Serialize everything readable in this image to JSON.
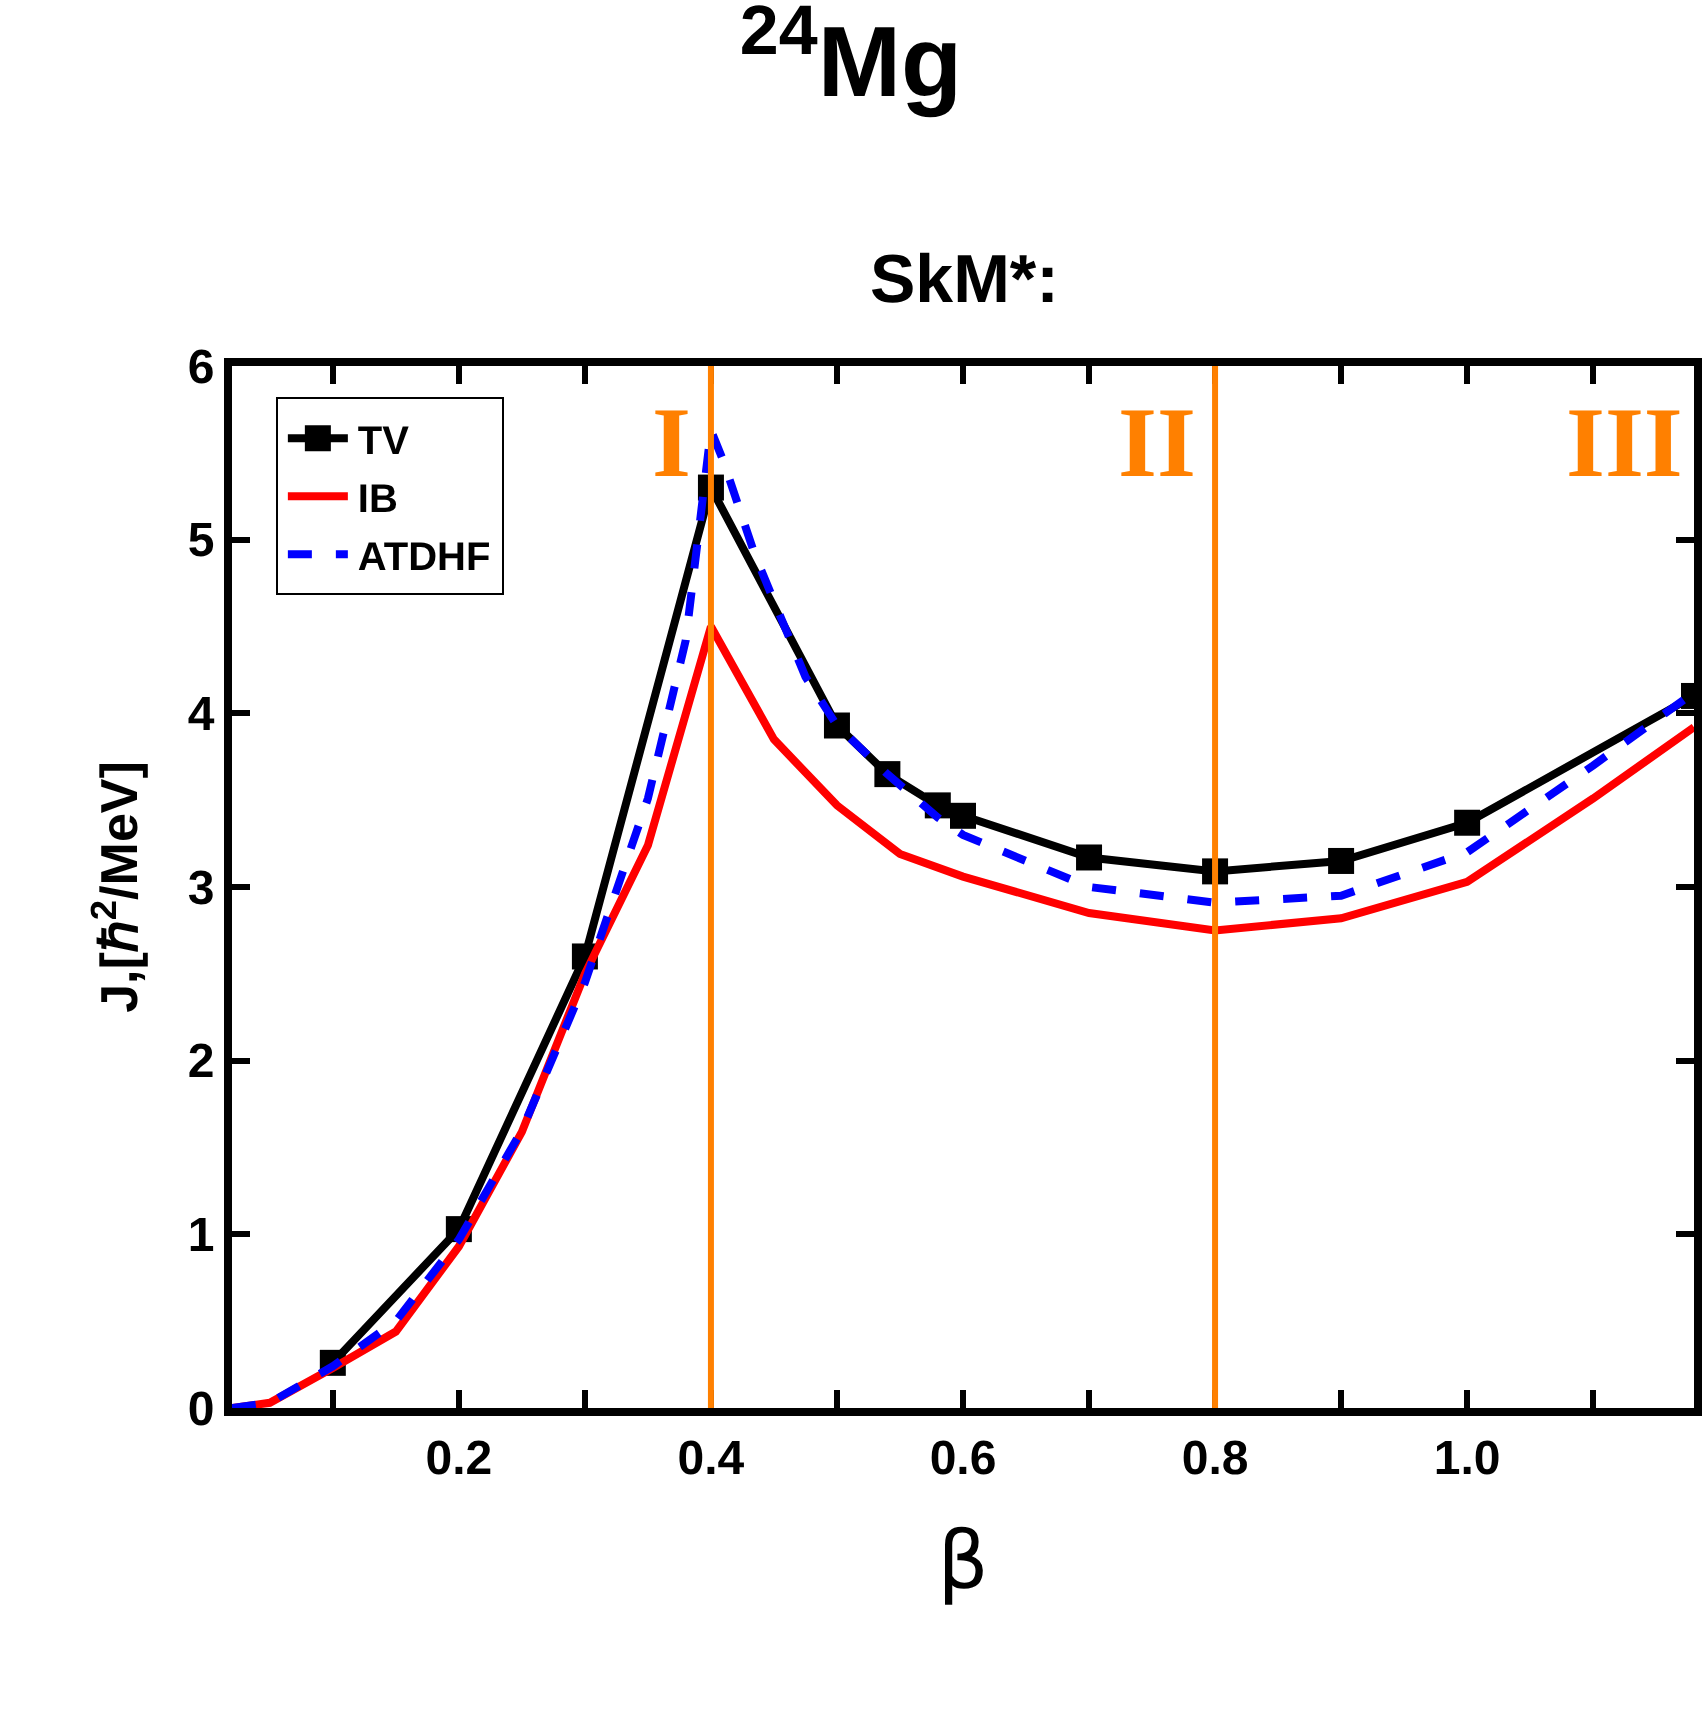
{
  "chart_data": {
    "type": "line",
    "title": "$^{24}$Mg",
    "subtitle": "SkM*:",
    "xlabel": "β",
    "ylabel": "J,[ℏ$^{2}$/MeV]",
    "xlim": [
      0.02,
      1.18
    ],
    "xticks": [
      {
        "value": 0.1,
        "label": null
      },
      0.2,
      {
        "value": 0.3,
        "label": null
      },
      0.4,
      {
        "value": 0.5,
        "label": null
      },
      0.6,
      {
        "value": 0.7,
        "label": null
      },
      0.8,
      {
        "value": 0.9,
        "label": null
      },
      {
        "value": 1.0,
        "label": "1.0"
      },
      {
        "value": 1.1,
        "label": null
      }
    ],
    "ylim": [
      0,
      6
    ],
    "yticks": [
      0,
      1,
      2,
      3,
      4,
      5,
      6
    ],
    "grid": false,
    "legend": "top left",
    "series": [
      {
        "name": "TV",
        "color": "#000000",
        "marker": "square",
        "line_style": "solid",
        "x": [
          0.1,
          0.2,
          0.3,
          0.4,
          0.5,
          0.54,
          0.58,
          0.6,
          0.7,
          0.8,
          0.9,
          1.0,
          1.18
        ],
        "values": [
          0.26,
          1.03,
          2.6,
          5.3,
          3.93,
          3.65,
          3.47,
          3.41,
          3.17,
          3.09,
          3.15,
          3.37,
          4.1
        ]
      },
      {
        "name": "IB",
        "color": "#ff0000",
        "marker": "none",
        "line_style": "solid",
        "x": [
          0.02,
          0.05,
          0.1,
          0.15,
          0.2,
          0.25,
          0.3,
          0.35,
          0.4,
          0.45,
          0.5,
          0.55,
          0.6,
          0.7,
          0.8,
          0.9,
          1.0,
          1.1,
          1.18
        ],
        "values": [
          0,
          0.03,
          0.23,
          0.44,
          0.93,
          1.59,
          2.5,
          3.24,
          4.5,
          3.85,
          3.47,
          3.19,
          3.06,
          2.85,
          2.75,
          2.82,
          3.03,
          3.51,
          3.92
        ]
      },
      {
        "name": "ATDHF",
        "color": "#0000ff",
        "marker": "none",
        "line_style": "dashed",
        "x": [
          0.02,
          0.05,
          0.1,
          0.15,
          0.2,
          0.25,
          0.3,
          0.35,
          0.38,
          0.4,
          0.41,
          0.435,
          0.475,
          0.5,
          0.54,
          0.58,
          0.6,
          0.7,
          0.8,
          0.9,
          1.0,
          1.1,
          1.18
        ],
        "values": [
          0,
          0.03,
          0.24,
          0.5,
          0.97,
          1.6,
          2.45,
          3.51,
          4.42,
          5.63,
          5.45,
          4.91,
          4.21,
          3.93,
          3.65,
          3.4,
          3.3,
          3.0,
          2.91,
          2.95,
          3.2,
          3.7,
          4.12
        ]
      }
    ],
    "ref_lines": [
      {
        "axis": "x",
        "value": 0.4,
        "label": "I",
        "color": "#ff8000"
      },
      {
        "axis": "x",
        "value": 0.8,
        "label": "II",
        "color": "#ff8000"
      }
    ],
    "annotations": [
      "III"
    ]
  }
}
